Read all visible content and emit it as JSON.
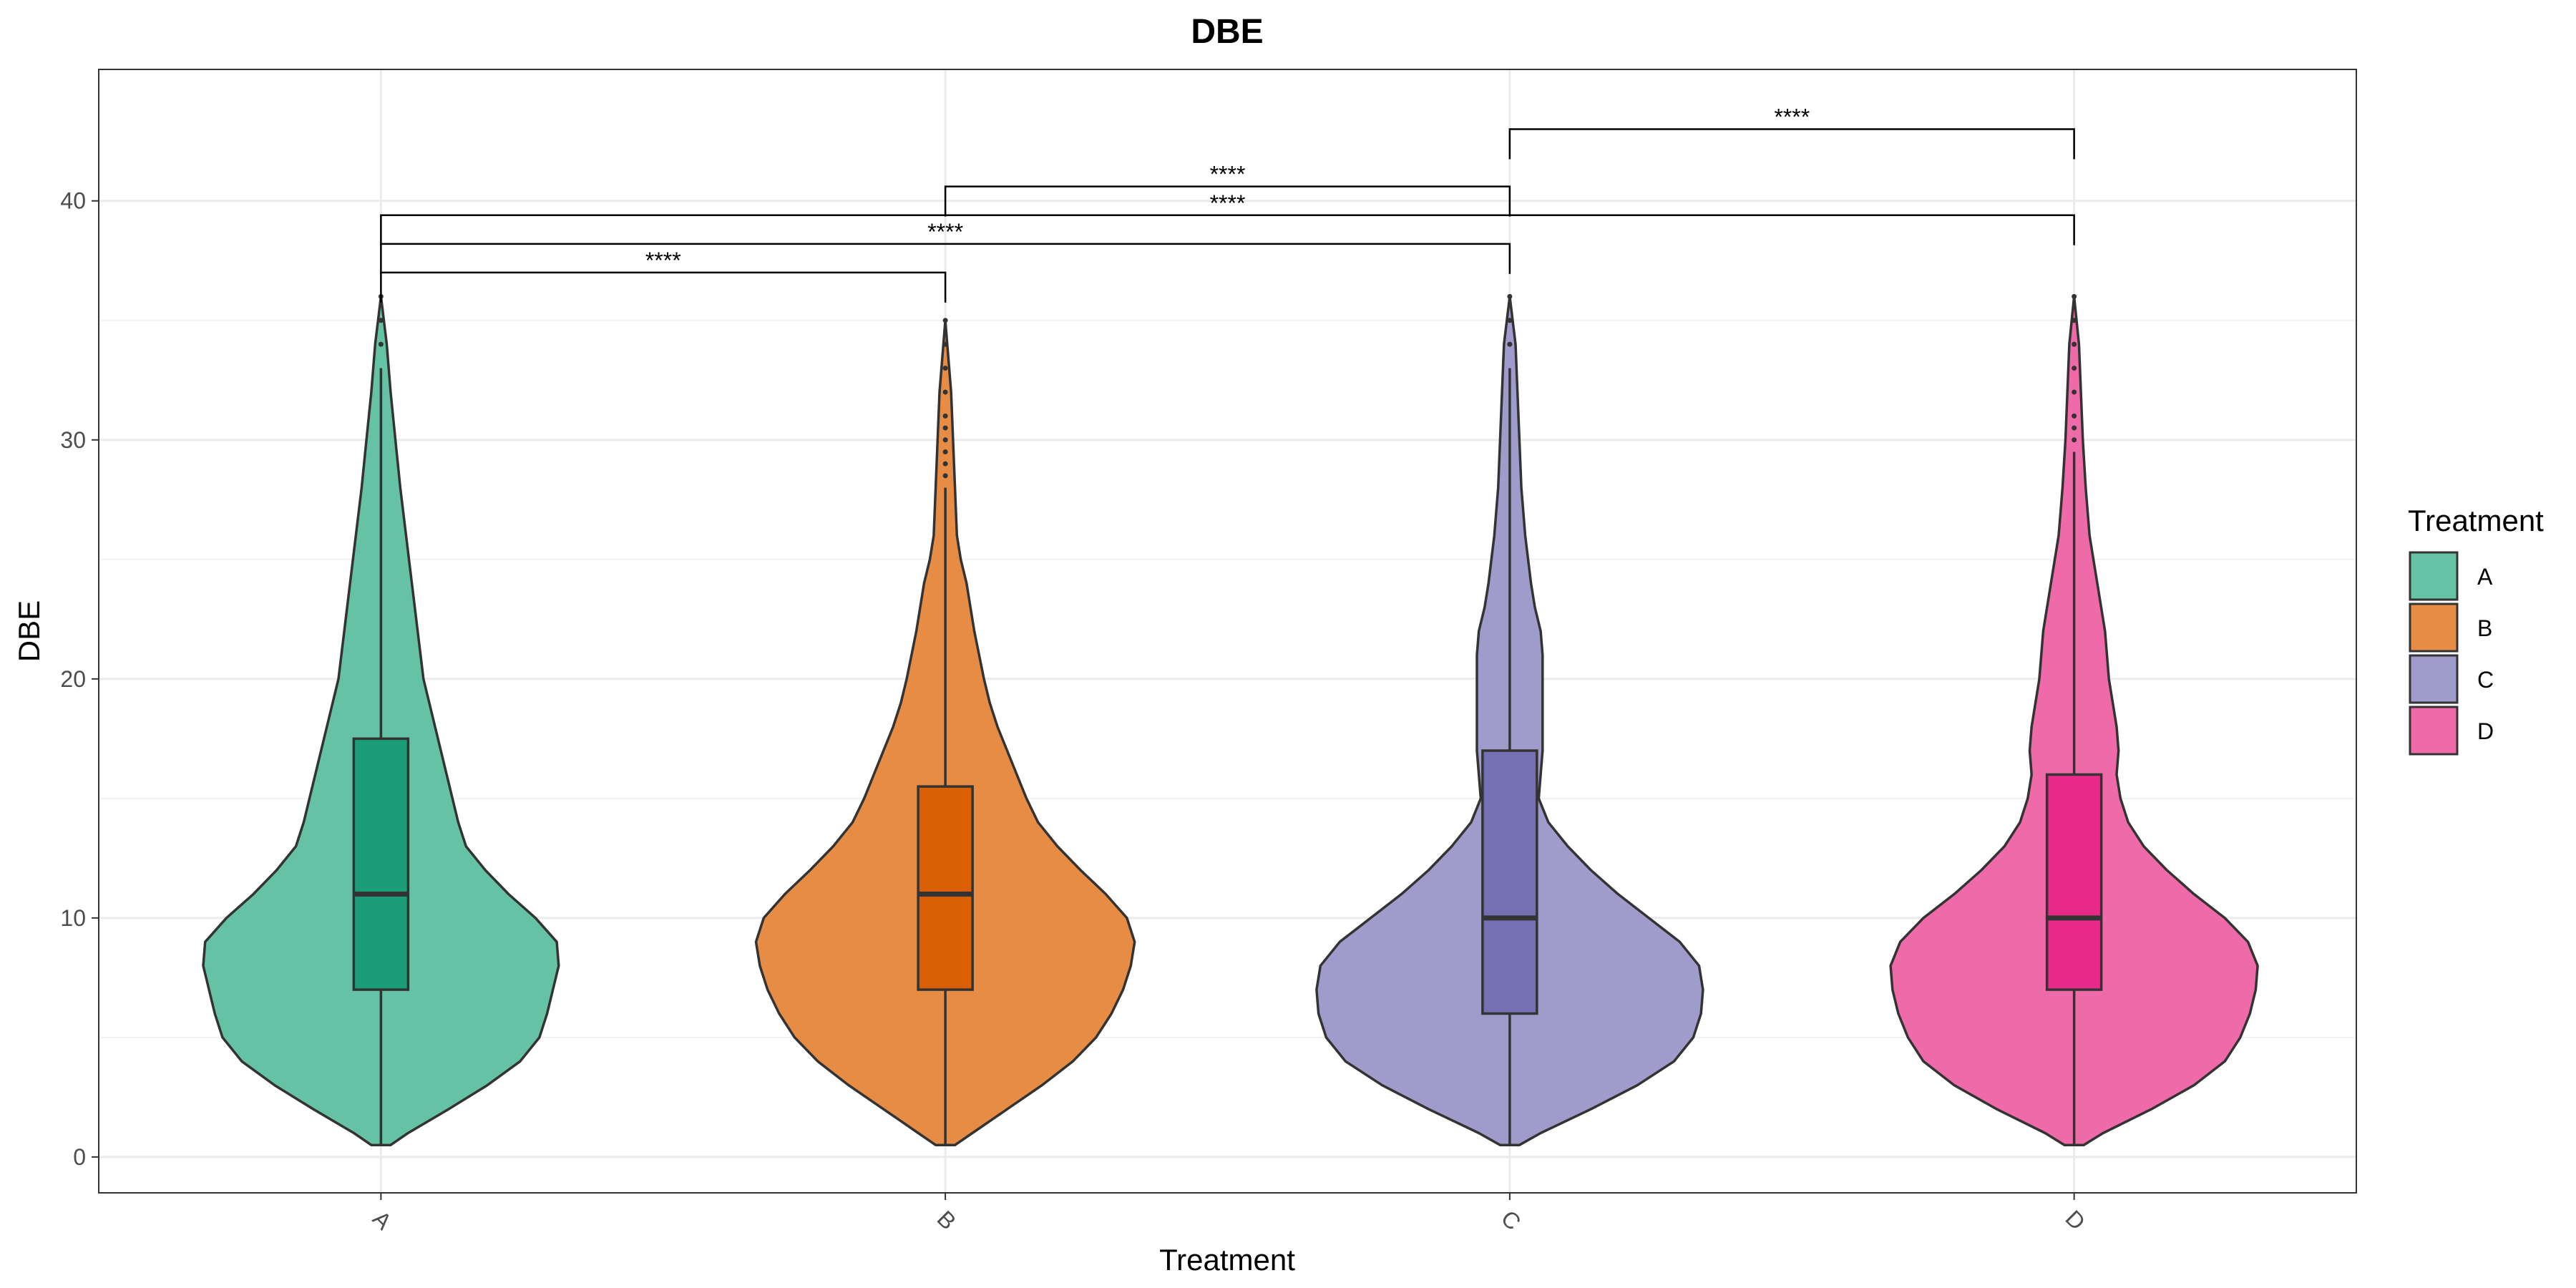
{
  "chart_data": {
    "type": "violin",
    "title": "DBE",
    "xlabel": "Treatment",
    "ylabel": "DBE",
    "ylim": [
      -1.5,
      45.5
    ],
    "yticks": [
      0,
      10,
      20,
      30,
      40
    ],
    "grid": true,
    "legend": {
      "title": "Treatment",
      "position": "right",
      "entries": [
        "A",
        "B",
        "C",
        "D"
      ]
    },
    "categories": [
      "A",
      "B",
      "C",
      "D"
    ],
    "series": [
      {
        "name": "A",
        "fill": "#66c2a5",
        "box_fill": "#1b9e77",
        "box": {
          "q1": 7,
          "median": 11,
          "q3": 17.5,
          "whisker_low": 0.5,
          "whisker_high": 33
        },
        "outliers": [
          34,
          35,
          36
        ],
        "violin": [
          [
            0.5,
            0.05
          ],
          [
            1,
            0.14
          ],
          [
            2,
            0.35
          ],
          [
            3,
            0.55
          ],
          [
            4,
            0.72
          ],
          [
            5,
            0.82
          ],
          [
            6,
            0.86
          ],
          [
            7,
            0.89
          ],
          [
            8,
            0.92
          ],
          [
            9,
            0.91
          ],
          [
            10,
            0.8
          ],
          [
            11,
            0.66
          ],
          [
            12,
            0.54
          ],
          [
            13,
            0.44
          ],
          [
            14,
            0.4
          ],
          [
            15,
            0.37
          ],
          [
            16,
            0.34
          ],
          [
            17,
            0.31
          ],
          [
            18,
            0.28
          ],
          [
            19,
            0.25
          ],
          [
            20,
            0.22
          ],
          [
            22,
            0.19
          ],
          [
            24,
            0.16
          ],
          [
            26,
            0.13
          ],
          [
            28,
            0.1
          ],
          [
            30,
            0.075
          ],
          [
            32,
            0.05
          ],
          [
            34,
            0.03
          ],
          [
            36,
            0
          ]
        ]
      },
      {
        "name": "B",
        "fill": "#e78c44",
        "box_fill": "#d95f02",
        "box": {
          "q1": 7,
          "median": 11,
          "q3": 15.5,
          "whisker_low": 0.5,
          "whisker_high": 28
        },
        "outliers": [
          28.5,
          29,
          29.5,
          30,
          30.5,
          31,
          32,
          33,
          34,
          35
        ],
        "violin": [
          [
            0.5,
            0.05
          ],
          [
            1,
            0.14
          ],
          [
            2,
            0.32
          ],
          [
            3,
            0.5
          ],
          [
            4,
            0.66
          ],
          [
            5,
            0.78
          ],
          [
            6,
            0.86
          ],
          [
            7,
            0.92
          ],
          [
            8,
            0.96
          ],
          [
            9,
            0.98
          ],
          [
            10,
            0.94
          ],
          [
            11,
            0.83
          ],
          [
            12,
            0.7
          ],
          [
            13,
            0.58
          ],
          [
            14,
            0.48
          ],
          [
            15,
            0.42
          ],
          [
            16,
            0.37
          ],
          [
            17,
            0.32
          ],
          [
            18,
            0.27
          ],
          [
            19,
            0.23
          ],
          [
            20,
            0.2
          ],
          [
            22,
            0.15
          ],
          [
            23,
            0.13
          ],
          [
            24,
            0.11
          ],
          [
            25,
            0.08
          ],
          [
            26,
            0.06
          ],
          [
            28,
            0.05
          ],
          [
            30,
            0.04
          ],
          [
            32,
            0.03
          ],
          [
            35,
            0
          ]
        ]
      },
      {
        "name": "C",
        "fill": "#9f9bca",
        "box_fill": "#7570b3",
        "box": {
          "q1": 6,
          "median": 10,
          "q3": 17,
          "whisker_low": 0.5,
          "whisker_high": 33
        },
        "outliers": [
          34,
          35,
          36
        ],
        "violin": [
          [
            0.5,
            0.05
          ],
          [
            1,
            0.16
          ],
          [
            2,
            0.42
          ],
          [
            3,
            0.66
          ],
          [
            4,
            0.85
          ],
          [
            5,
            0.95
          ],
          [
            6,
            0.99
          ],
          [
            7,
            1
          ],
          [
            8,
            0.98
          ],
          [
            9,
            0.88
          ],
          [
            10,
            0.72
          ],
          [
            11,
            0.56
          ],
          [
            12,
            0.42
          ],
          [
            13,
            0.3
          ],
          [
            14,
            0.2
          ],
          [
            15,
            0.15
          ],
          [
            16,
            0.16
          ],
          [
            17,
            0.17
          ],
          [
            18,
            0.17
          ],
          [
            19,
            0.17
          ],
          [
            20,
            0.17
          ],
          [
            21,
            0.17
          ],
          [
            22,
            0.16
          ],
          [
            23,
            0.13
          ],
          [
            24,
            0.11
          ],
          [
            26,
            0.08
          ],
          [
            28,
            0.06
          ],
          [
            30,
            0.05
          ],
          [
            32,
            0.04
          ],
          [
            34,
            0.03
          ],
          [
            36,
            0
          ]
        ]
      },
      {
        "name": "D",
        "fill": "#ef6aa9",
        "box_fill": "#e7298a",
        "box": {
          "q1": 7,
          "median": 10,
          "q3": 16,
          "whisker_low": 0.5,
          "whisker_high": 29.5
        },
        "outliers": [
          30,
          30.5,
          31,
          32,
          33,
          34,
          35,
          36
        ],
        "violin": [
          [
            0.5,
            0.05
          ],
          [
            1,
            0.15
          ],
          [
            2,
            0.4
          ],
          [
            3,
            0.62
          ],
          [
            4,
            0.78
          ],
          [
            5,
            0.86
          ],
          [
            6,
            0.91
          ],
          [
            7,
            0.94
          ],
          [
            8,
            0.95
          ],
          [
            9,
            0.9
          ],
          [
            10,
            0.78
          ],
          [
            11,
            0.62
          ],
          [
            12,
            0.48
          ],
          [
            13,
            0.36
          ],
          [
            14,
            0.28
          ],
          [
            15,
            0.24
          ],
          [
            16,
            0.22
          ],
          [
            17,
            0.23
          ],
          [
            18,
            0.22
          ],
          [
            19,
            0.2
          ],
          [
            20,
            0.18
          ],
          [
            22,
            0.16
          ],
          [
            24,
            0.12
          ],
          [
            26,
            0.08
          ],
          [
            28,
            0.06
          ],
          [
            30,
            0.045
          ],
          [
            32,
            0.035
          ],
          [
            34,
            0.025
          ],
          [
            36,
            0
          ]
        ]
      }
    ],
    "comparisons": [
      {
        "from": "A",
        "to": "B",
        "y": 37,
        "label": "****"
      },
      {
        "from": "A",
        "to": "C",
        "y": 38.2,
        "label": "****"
      },
      {
        "from": "A",
        "to": "D",
        "y": 39.4,
        "label": "****"
      },
      {
        "from": "B",
        "to": "C",
        "y": 40.6,
        "label": "****"
      },
      {
        "from": "C",
        "to": "D",
        "y": 43,
        "label": "****"
      }
    ]
  }
}
